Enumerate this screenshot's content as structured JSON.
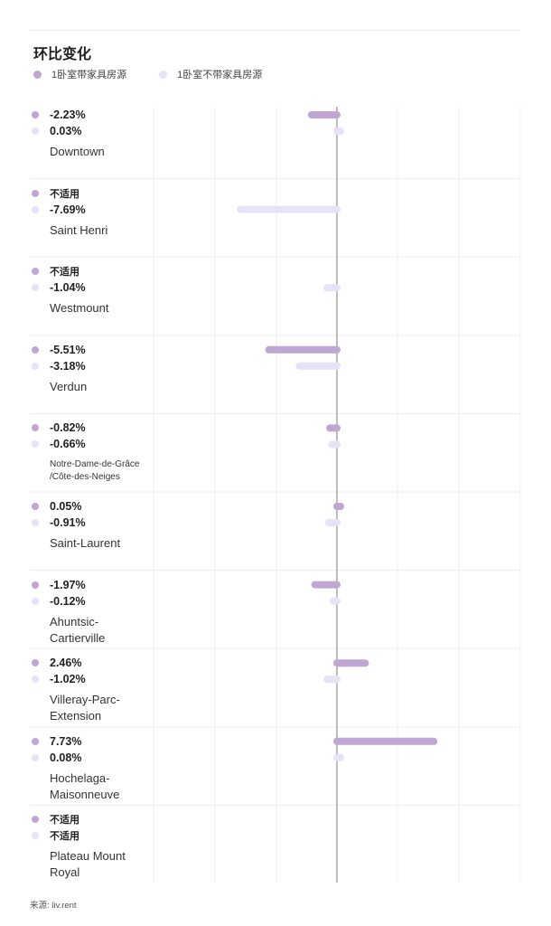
{
  "title": "环比变化",
  "source": "来源: liv.rent",
  "colors": {
    "furnished": "#c0a6d3",
    "unfurnished": "#e6e3f7",
    "axis": "#7a7a7a",
    "grid": "#efefef"
  },
  "chart_data": {
    "type": "bar",
    "orientation": "horizontal",
    "title": "环比变化",
    "unit": "%",
    "xlim": [
      -14,
      18
    ],
    "grid": true,
    "legend_position": "top-left",
    "series": [
      {
        "name": "1卧室带家具房源",
        "color": "#c0a6d3",
        "values": [
          -2.23,
          null,
          null,
          -5.51,
          -0.82,
          0.05,
          -1.97,
          2.46,
          7.73,
          null
        ],
        "labels": [
          "-2.23%",
          "不适用",
          "不适用",
          "-5.51%",
          "-0.82%",
          "0.05%",
          "-1.97%",
          "2.46%",
          "7.73%",
          "不适用"
        ]
      },
      {
        "name": "1卧室不带家具房源",
        "color": "#e6e3f7",
        "values": [
          0.03,
          -7.69,
          -1.04,
          -3.18,
          -0.66,
          -0.91,
          -0.12,
          -1.02,
          0.08,
          null
        ],
        "labels": [
          "0.03%",
          "-7.69%",
          "-1.04%",
          "-3.18%",
          "-0.66%",
          "-0.91%",
          "-0.12%",
          "-1.02%",
          "0.08%",
          "不适用"
        ]
      }
    ],
    "categories": [
      {
        "name": [
          "Downtown"
        ]
      },
      {
        "name": [
          "Saint Henri"
        ]
      },
      {
        "name": [
          "Westmount"
        ]
      },
      {
        "name": [
          "Verdun"
        ]
      },
      {
        "name": [
          "Notre-Dame-de-Grâce",
          "/Côte-des-Neiges"
        ],
        "small": true
      },
      {
        "name": [
          "Saint-Laurent"
        ]
      },
      {
        "name": [
          "Ahuntsic-",
          "Cartierville"
        ]
      },
      {
        "name": [
          "Villeray-Parc-",
          "Extension"
        ]
      },
      {
        "name": [
          "Hochelaga-",
          "Maisonneuve"
        ]
      },
      {
        "name": [
          "Plateau Mount",
          "Royal"
        ]
      }
    ]
  }
}
